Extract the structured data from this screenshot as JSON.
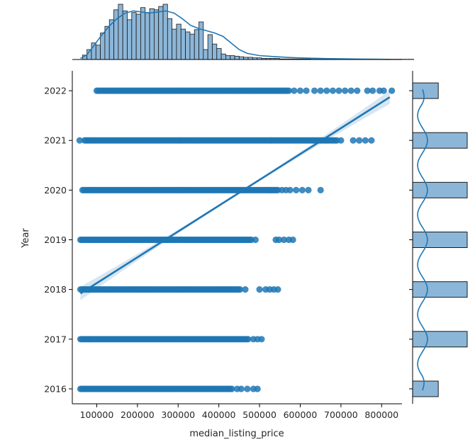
{
  "chart_data": {
    "type": "scatter",
    "xlabel": "median_listing_price",
    "ylabel": "Year",
    "xlim": [
      40000,
      850000
    ],
    "ylim": [
      2015.7,
      2022.4
    ],
    "x_ticks": [
      100000,
      200000,
      300000,
      400000,
      500000,
      600000,
      700000,
      800000
    ],
    "y_ticks": [
      2016,
      2017,
      2018,
      2019,
      2020,
      2021,
      2022
    ],
    "grid": false,
    "point_color": "#1f77b4",
    "regression_line": {
      "x": [
        60000,
        820000
      ],
      "y": [
        2017.92,
        2021.87
      ]
    },
    "rows": [
      {
        "year": 2022,
        "dense": [
          100000,
          575000
        ],
        "extra": [
          585000,
          600000,
          615000,
          635000,
          650000,
          665000,
          680000,
          695000,
          710000,
          725000,
          740000,
          765000,
          778000,
          795000,
          805000,
          825000
        ]
      },
      {
        "year": 2021,
        "dense": [
          70000,
          690000
        ],
        "extra": [
          58000,
          700000,
          730000,
          745000,
          760000,
          775000
        ]
      },
      {
        "year": 2020,
        "dense": [
          65000,
          545000
        ],
        "extra": [
          555000,
          565000,
          575000,
          590000,
          605000,
          620000,
          650000
        ]
      },
      {
        "year": 2019,
        "dense": [
          60000,
          480000
        ],
        "extra": [
          490000,
          540000,
          548000,
          560000,
          572000,
          582000
        ]
      },
      {
        "year": 2018,
        "dense": [
          60000,
          455000
        ],
        "extra": [
          465000,
          500000,
          515000,
          525000,
          535000,
          545000
        ]
      },
      {
        "year": 2017,
        "dense": [
          60000,
          475000
        ],
        "extra": [
          485000,
          495000,
          505000
        ]
      },
      {
        "year": 2016,
        "dense": [
          60000,
          435000
        ],
        "extra": [
          445000,
          455000,
          470000,
          485000,
          495000
        ]
      }
    ],
    "marginal_x_hist": {
      "bin_start": 65000,
      "bin_width": 11000,
      "counts": [
        0.08,
        0.18,
        0.3,
        0.26,
        0.48,
        0.6,
        0.72,
        0.9,
        1.0,
        0.88,
        0.72,
        0.85,
        0.82,
        0.94,
        0.85,
        0.92,
        0.9,
        0.96,
        1.0,
        0.74,
        0.55,
        0.64,
        0.55,
        0.5,
        0.46,
        0.54,
        0.68,
        0.18,
        0.45,
        0.28,
        0.2,
        0.1,
        0.07,
        0.07,
        0.06,
        0.05,
        0.04,
        0.04,
        0.03,
        0.03,
        0.02,
        0.02,
        0.02,
        0.02,
        0.01,
        0.01,
        0.01,
        0.01,
        0.01,
        0.01,
        0.01,
        0.005,
        0.005,
        0.005,
        0.005,
        0.005,
        0.005,
        0.005,
        0.005,
        0.005,
        0.005,
        0.005,
        0.005,
        0.005,
        0.005,
        0.005,
        0.005,
        0.005,
        0.005,
        0.005,
        0.005,
        0.005,
        0.005,
        0.005
      ]
    },
    "marginal_x_kde": {
      "x": [
        60000,
        75000,
        90000,
        110000,
        130000,
        150000,
        170000,
        190000,
        210000,
        230000,
        250000,
        270000,
        290000,
        310000,
        330000,
        350000,
        370000,
        390000,
        410000,
        430000,
        450000,
        470000,
        500000,
        540000,
        580000,
        620000,
        670000,
        720000,
        780000,
        820000
      ],
      "y": [
        0.02,
        0.08,
        0.22,
        0.42,
        0.6,
        0.74,
        0.84,
        0.88,
        0.86,
        0.84,
        0.86,
        0.88,
        0.84,
        0.74,
        0.62,
        0.56,
        0.52,
        0.48,
        0.42,
        0.3,
        0.18,
        0.11,
        0.07,
        0.05,
        0.035,
        0.025,
        0.015,
        0.01,
        0.005,
        0.003
      ]
    },
    "marginal_y_hist": [
      {
        "year": 2022,
        "count": 0.47
      },
      {
        "year": 2021,
        "count": 1.0
      },
      {
        "year": 2020,
        "count": 1.0
      },
      {
        "year": 2019,
        "count": 1.0
      },
      {
        "year": 2018,
        "count": 1.0
      },
      {
        "year": 2017,
        "count": 1.0
      },
      {
        "year": 2016,
        "count": 0.47
      }
    ],
    "marginal_y_kde_amplitude": 0.18,
    "hist_fill": "#8cb6d8",
    "hist_stroke": "#1a1a1a"
  }
}
